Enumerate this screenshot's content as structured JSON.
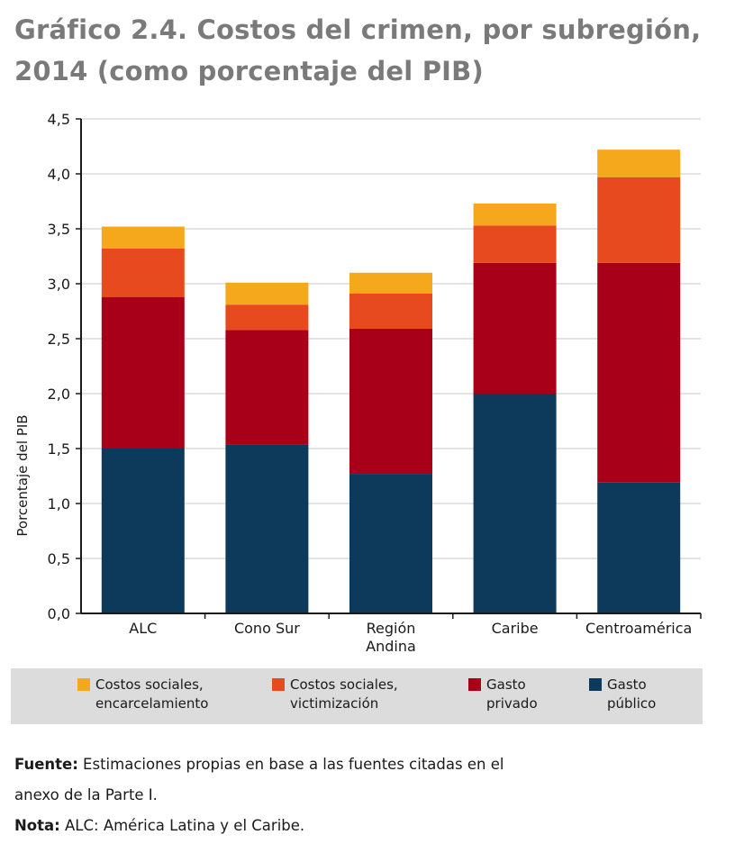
{
  "title_line1": "Gráfico 2.4. Costos del crimen, por subregión,",
  "title_line2": "2014 (como porcentaje del PIB)",
  "chart_data": {
    "type": "bar",
    "stacked": true,
    "ylabel": "Porcentaje del PIB",
    "ylim": [
      0,
      4.5
    ],
    "yticks": [
      "0,0",
      "0,5",
      "1,0",
      "1,5",
      "2,0",
      "2,5",
      "3,0",
      "3,5",
      "4,0",
      "4,5"
    ],
    "categories": [
      [
        "ALC"
      ],
      [
        "Cono Sur"
      ],
      [
        "Región",
        "Andina"
      ],
      [
        "Caribe"
      ],
      [
        "Centroamérica"
      ]
    ],
    "series": [
      {
        "name": "Gasto público",
        "color": "#0d3a5a",
        "values": [
          1.5,
          1.54,
          1.27,
          2.0,
          1.19
        ]
      },
      {
        "name": "Gasto privado",
        "color": "#a80018",
        "values": [
          1.38,
          1.04,
          1.32,
          1.19,
          2.0
        ]
      },
      {
        "name": "Costos sociales, victimización",
        "color": "#e84a1f",
        "values": [
          0.44,
          0.23,
          0.32,
          0.34,
          0.78
        ]
      },
      {
        "name": "Costos sociales, encarcelamiento",
        "color": "#f5a81b",
        "values": [
          0.2,
          0.2,
          0.19,
          0.2,
          0.25
        ]
      }
    ],
    "grid": true
  },
  "legend": [
    {
      "lines": [
        "Costos sociales,",
        "encarcelamiento"
      ],
      "color": "#f5a81b"
    },
    {
      "lines": [
        "Costos sociales,",
        "victimización"
      ],
      "color": "#e84a1f"
    },
    {
      "lines": [
        "Gasto",
        "privado"
      ],
      "color": "#a80018"
    },
    {
      "lines": [
        "Gasto",
        "público"
      ],
      "color": "#0d3a5a"
    }
  ],
  "source": {
    "fuente_label": "Fuente:",
    "fuente_text": " Estimaciones propias en base a las fuentes citadas en el",
    "fuente_text2": "anexo de la Parte I.",
    "nota_label": "Nota:",
    "nota_text": " ALC: América Latina y el Caribe."
  }
}
